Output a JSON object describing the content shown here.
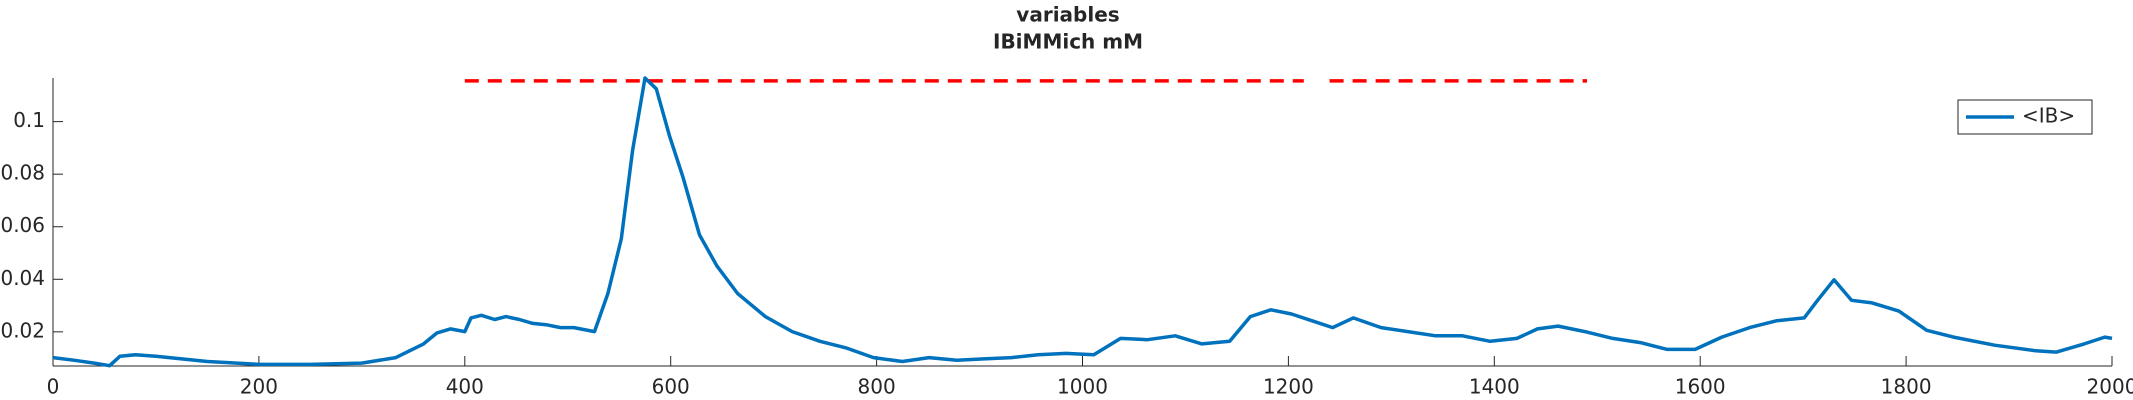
{
  "chart_data": {
    "type": "line",
    "title": "variables",
    "subtitle": "IBiMMich mM",
    "x": [
      0,
      20,
      40,
      55,
      65,
      80,
      100,
      150,
      200,
      250,
      300,
      333,
      360,
      373,
      386,
      400,
      406,
      416,
      429,
      440,
      453,
      466,
      479,
      493,
      506,
      526,
      539,
      552,
      563,
      575,
      586,
      599,
      612,
      628,
      645,
      665,
      692,
      718,
      745,
      771,
      797,
      825,
      851,
      878,
      904,
      931,
      957,
      984,
      1011,
      1037,
      1063,
      1090,
      1116,
      1143,
      1163,
      1183,
      1203,
      1223,
      1243,
      1263,
      1290,
      1316,
      1343,
      1369,
      1396,
      1422,
      1442,
      1462,
      1488,
      1515,
      1542,
      1568,
      1595,
      1621,
      1648,
      1674,
      1701,
      1714,
      1730,
      1747,
      1767,
      1793,
      1820,
      1846,
      1886,
      1926,
      1946,
      1973,
      1993,
      2000
    ],
    "series": [
      {
        "name": "<IB>",
        "color": "#0072bd",
        "values": [
          0.0102,
          0.0092,
          0.0081,
          0.0071,
          0.0107,
          0.0113,
          0.0107,
          0.0087,
          0.0076,
          0.0076,
          0.0081,
          0.0102,
          0.0154,
          0.0196,
          0.0211,
          0.0201,
          0.0253,
          0.0263,
          0.0247,
          0.0258,
          0.0247,
          0.0232,
          0.0227,
          0.0216,
          0.0216,
          0.0201,
          0.0346,
          0.0554,
          0.0891,
          0.1166,
          0.1125,
          0.0943,
          0.0787,
          0.0569,
          0.045,
          0.0346,
          0.0258,
          0.0201,
          0.0164,
          0.0138,
          0.0102,
          0.0087,
          0.0102,
          0.0092,
          0.0097,
          0.0102,
          0.0113,
          0.0118,
          0.0113,
          0.0175,
          0.017,
          0.0185,
          0.0154,
          0.0164,
          0.0258,
          0.0284,
          0.0268,
          0.0242,
          0.0216,
          0.0253,
          0.0216,
          0.0201,
          0.0185,
          0.0185,
          0.0164,
          0.0175,
          0.0211,
          0.0222,
          0.0201,
          0.0175,
          0.0159,
          0.0133,
          0.0133,
          0.018,
          0.0216,
          0.0242,
          0.0253,
          0.032,
          0.0398,
          0.032,
          0.031,
          0.0279,
          0.0206,
          0.018,
          0.0149,
          0.0128,
          0.0123,
          0.0154,
          0.018,
          0.0175
        ]
      }
    ],
    "reference_line": {
      "color": "#ff0000",
      "x": [
        400,
        1215,
        1228,
        1240,
        1490
      ],
      "values": [
        0.1155,
        0.1155,
        null,
        0.1155,
        0.1155
      ]
    },
    "xlim": [
      0,
      2000
    ],
    "xticks": [
      0,
      200,
      400,
      600,
      800,
      1000,
      1200,
      1400,
      1600,
      1800,
      2000
    ],
    "ylim": [
      0.007,
      0.1166
    ],
    "yticks": [
      0.02,
      0.04,
      0.06,
      0.08,
      0.1
    ],
    "legend": "upper right",
    "grid": false
  }
}
